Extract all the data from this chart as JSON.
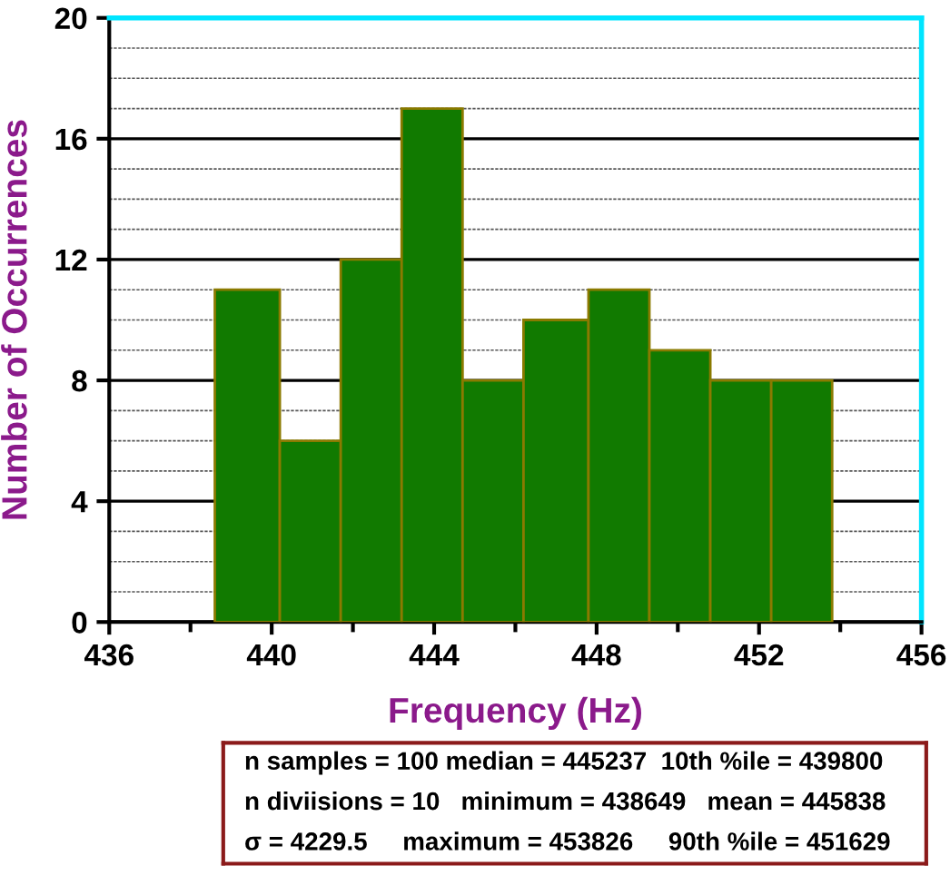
{
  "chart_data": {
    "type": "histogram",
    "xlabel": "Frequency (Hz)",
    "ylabel": "Number of Occurrences",
    "bins": [
      438.6,
      440.2,
      441.7,
      443.2,
      444.7,
      446.2,
      447.8,
      449.3,
      450.8,
      452.3,
      453.8
    ],
    "values": [
      11,
      6,
      12,
      17,
      8,
      10,
      11,
      9,
      8,
      8
    ],
    "color": "#117a00",
    "xlim": [
      436,
      456
    ],
    "xticks": [
      436,
      440,
      444,
      448,
      452,
      456
    ],
    "ylim": [
      0,
      20
    ],
    "yticks": [
      0,
      4,
      8,
      12,
      16,
      20
    ],
    "grid": "y",
    "annotations": [
      "n samples = 100 median = 445237  10th %ile = 439800",
      "n diviisions = 10   minimum = 438649   mean = 445838",
      "σ = 4229.5     maximum = 453826     90th %ile = 451629"
    ]
  }
}
